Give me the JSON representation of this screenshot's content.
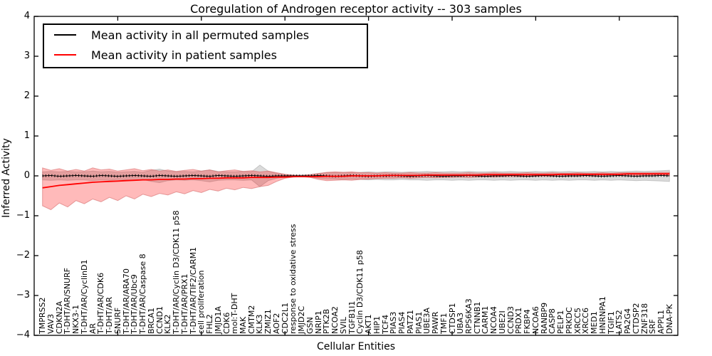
{
  "figure": {
    "title": "Coregulation of Androgen receptor activity -- 303 samples",
    "xlabel": "Cellular Entities",
    "ylabel": "Inferred Activity"
  },
  "legend": {
    "items": [
      {
        "label": "Mean activity in all permuted samples",
        "color": "#000000"
      },
      {
        "label": "Mean activity in patient samples",
        "color": "#ff0000"
      }
    ]
  },
  "chart_data": {
    "type": "line",
    "title": "Coregulation of Androgen receptor activity -- 303 samples",
    "xlabel": "Cellular Entities",
    "ylabel": "Inferred Activity",
    "ylim": [
      -4,
      4
    ],
    "yticks": [
      4,
      3,
      2,
      1,
      0,
      -1,
      -2,
      -3,
      -4
    ],
    "xlim": [
      0,
      77
    ],
    "xticks_top": [
      10,
      20,
      30,
      40,
      50,
      60,
      70
    ],
    "grid": false,
    "legend_position": "upper left",
    "categories": [
      "TMPRSS2",
      "VAV3",
      "CDKN2A",
      "T-DHT/AR/SNURF",
      "NKX3-1",
      "T-DHT/AR/CyclinD1",
      "AR",
      "T-DHT/AR/CDK6",
      "T-DHT/AR",
      "SNURF",
      "T-DHT/AR/ARA70",
      "T-DHT/AR/Ubc9",
      "T-DHT/AR/Caspase 8",
      "BRCA1",
      "CCND1",
      "KLK2",
      "T-DHT/AR/Cyclin D3/CDK11 p58",
      "T-DHT/AR/PRX1",
      "T-DHT/AR/TIF2/CARM1",
      "cell proliferation",
      "FHL2",
      "JMJD1A",
      "CDK6",
      "mol:T-DHT",
      "MAK",
      "CMTM2",
      "KLK3",
      "ZMIZ1",
      "AOF2",
      "CDC2L1",
      "response to oxidative stress",
      "JMJD2C",
      "GSN",
      "NRIP1",
      "PTK2B",
      "NCOA2",
      "SVIL",
      "TGFB1I1",
      "Cyclin D3/CDK11 p58",
      "AKT1",
      "HIP1",
      "TCF4",
      "PIAS3",
      "PIAS4",
      "PATZ1",
      "PIAS1",
      "UBE3A",
      "PAWR",
      "TMF1",
      "CTDSP1",
      "UBA3",
      "RPS6KA3",
      "CTNNB1",
      "CARM1",
      "NCOA4",
      "UBE2I",
      "CCND3",
      "PRDX1",
      "FKBP4",
      "NCOA6",
      "RANBP9",
      "CASP8",
      "PELP1",
      "PRKDC",
      "XRCC5",
      "XRCC6",
      "MED1",
      "HNRNPA1",
      "TGIF1",
      "LATS2",
      "PA2G4",
      "CTDSP2",
      "ZNF318",
      "SRF",
      "APPL1",
      "DNA-PK"
    ],
    "series": [
      {
        "name": "Mean activity in all permuted samples",
        "color": "#000000",
        "style": "solid-with-tick-markers",
        "values": [
          0.0,
          0.01,
          -0.01,
          0.0,
          0.01,
          0.0,
          -0.01,
          0.01,
          0.0,
          -0.01,
          0.0,
          0.01,
          0.0,
          -0.01,
          0.01,
          0.0,
          -0.01,
          0.0,
          0.01,
          0.0,
          -0.01,
          0.01,
          0.0,
          -0.01,
          0.0,
          0.01,
          0.0,
          -0.01,
          0.0,
          0.0,
          0.0,
          0.0,
          0.0,
          0.01,
          0.0,
          -0.01,
          0.0,
          0.01,
          0.0,
          -0.01,
          0.0,
          0.0,
          0.01,
          0.0,
          -0.01,
          0.0,
          0.01,
          0.0,
          -0.01,
          0.0,
          0.0,
          0.01,
          0.0,
          -0.01,
          0.0,
          0.0,
          0.01,
          0.0,
          -0.01,
          0.0,
          0.01,
          0.0,
          -0.01,
          0.0,
          0.0,
          0.01,
          0.0,
          -0.01,
          0.0,
          0.01,
          0.0,
          -0.01,
          0.0,
          0.0,
          0.01,
          0.0
        ]
      },
      {
        "name": "Mean activity in patient samples",
        "color": "#ff0000",
        "style": "solid",
        "values": [
          -0.3,
          -0.27,
          -0.24,
          -0.22,
          -0.2,
          -0.18,
          -0.16,
          -0.15,
          -0.14,
          -0.13,
          -0.12,
          -0.11,
          -0.1,
          -0.1,
          -0.09,
          -0.09,
          -0.08,
          -0.08,
          -0.07,
          -0.07,
          -0.06,
          -0.06,
          -0.05,
          -0.05,
          -0.05,
          -0.04,
          -0.04,
          -0.04,
          -0.03,
          -0.03,
          -0.02,
          -0.02,
          -0.02,
          -0.02,
          -0.01,
          -0.01,
          -0.01,
          0.0,
          0.0,
          0.0,
          0.0,
          0.01,
          0.01,
          0.01,
          0.01,
          0.01,
          0.02,
          0.02,
          0.02,
          0.02,
          0.02,
          0.02,
          0.02,
          0.03,
          0.03,
          0.03,
          0.03,
          0.03,
          0.03,
          0.03,
          0.03,
          0.03,
          0.04,
          0.04,
          0.04,
          0.04,
          0.04,
          0.04,
          0.04,
          0.04,
          0.05,
          0.05,
          0.05,
          0.05,
          0.05,
          0.05
        ]
      }
    ],
    "bands": [
      {
        "name": "permuted-samples-std-band",
        "color": "#bdbdbd",
        "opacity": 0.55,
        "upper": [
          0.1,
          0.11,
          0.1,
          0.11,
          0.1,
          0.1,
          0.12,
          0.1,
          0.11,
          0.09,
          0.1,
          0.11,
          0.09,
          0.14,
          0.17,
          0.12,
          0.1,
          0.11,
          0.1,
          0.12,
          0.15,
          0.11,
          0.1,
          0.1,
          0.11,
          0.1,
          0.27,
          0.12,
          0.06,
          0.03,
          0.02,
          0.02,
          0.03,
          0.06,
          0.08,
          0.08,
          0.09,
          0.08,
          0.09,
          0.1,
          0.09,
          0.1,
          0.1,
          0.09,
          0.1,
          0.1,
          0.11,
          0.1,
          0.1,
          0.11,
          0.1,
          0.11,
          0.1,
          0.1,
          0.11,
          0.1,
          0.11,
          0.1,
          0.1,
          0.11,
          0.1,
          0.11,
          0.1,
          0.11,
          0.1,
          0.1,
          0.11,
          0.1,
          0.11,
          0.1,
          0.11,
          0.12,
          0.11,
          0.12,
          0.13,
          0.14
        ],
        "lower": [
          -0.1,
          -0.11,
          -0.1,
          -0.11,
          -0.1,
          -0.1,
          -0.12,
          -0.1,
          -0.11,
          -0.09,
          -0.1,
          -0.11,
          -0.09,
          -0.14,
          -0.17,
          -0.12,
          -0.1,
          -0.11,
          -0.1,
          -0.12,
          -0.15,
          -0.11,
          -0.1,
          -0.1,
          -0.11,
          -0.1,
          -0.27,
          -0.12,
          -0.06,
          -0.03,
          -0.02,
          -0.02,
          -0.03,
          -0.06,
          -0.08,
          -0.08,
          -0.09,
          -0.08,
          -0.09,
          -0.1,
          -0.09,
          -0.1,
          -0.1,
          -0.09,
          -0.1,
          -0.1,
          -0.11,
          -0.1,
          -0.1,
          -0.11,
          -0.1,
          -0.11,
          -0.1,
          -0.1,
          -0.11,
          -0.1,
          -0.11,
          -0.1,
          -0.1,
          -0.11,
          -0.1,
          -0.11,
          -0.1,
          -0.11,
          -0.1,
          -0.1,
          -0.11,
          -0.1,
          -0.11,
          -0.1,
          -0.11,
          -0.12,
          -0.11,
          -0.12,
          -0.13,
          -0.14
        ]
      },
      {
        "name": "patient-samples-std-band",
        "color": "#ff0000",
        "opacity": 0.27,
        "upper": [
          0.2,
          0.14,
          0.18,
          0.12,
          0.16,
          0.12,
          0.2,
          0.15,
          0.17,
          0.12,
          0.15,
          0.18,
          0.13,
          0.16,
          0.12,
          0.15,
          0.11,
          0.14,
          0.16,
          0.12,
          0.15,
          0.1,
          0.13,
          0.15,
          0.11,
          0.13,
          0.1,
          0.12,
          0.08,
          0.04,
          0.02,
          0.01,
          0.03,
          0.06,
          0.09,
          0.1,
          0.09,
          0.1,
          0.08,
          0.08,
          0.07,
          0.08,
          0.07,
          0.07,
          0.08,
          0.07,
          0.07,
          0.08,
          0.07,
          0.07,
          0.07,
          0.08,
          0.07,
          0.07,
          0.08,
          0.07,
          0.07,
          0.07,
          0.08,
          0.07,
          0.07,
          0.08,
          0.07,
          0.07,
          0.08,
          0.07,
          0.07,
          0.08,
          0.07,
          0.08,
          0.08,
          0.08,
          0.08,
          0.08,
          0.09,
          0.09
        ],
        "lower": [
          -0.75,
          -0.85,
          -0.68,
          -0.78,
          -0.62,
          -0.7,
          -0.58,
          -0.65,
          -0.54,
          -0.62,
          -0.5,
          -0.58,
          -0.46,
          -0.52,
          -0.44,
          -0.48,
          -0.4,
          -0.45,
          -0.37,
          -0.42,
          -0.34,
          -0.38,
          -0.31,
          -0.35,
          -0.29,
          -0.32,
          -0.27,
          -0.24,
          -0.14,
          -0.06,
          -0.03,
          -0.02,
          -0.04,
          -0.09,
          -0.12,
          -0.11,
          -0.1,
          -0.11,
          -0.09,
          -0.08,
          -0.07,
          -0.06,
          -0.06,
          -0.05,
          -0.06,
          -0.05,
          -0.04,
          -0.05,
          -0.04,
          -0.04,
          -0.03,
          -0.04,
          -0.03,
          -0.02,
          -0.03,
          -0.02,
          -0.02,
          -0.02,
          -0.02,
          -0.01,
          -0.01,
          -0.01,
          -0.01,
          -0.01,
          -0.01,
          0.0,
          -0.01,
          0.0,
          0.0,
          0.0,
          0.0,
          0.0,
          0.01,
          0.01,
          0.01,
          0.01
        ]
      }
    ]
  }
}
